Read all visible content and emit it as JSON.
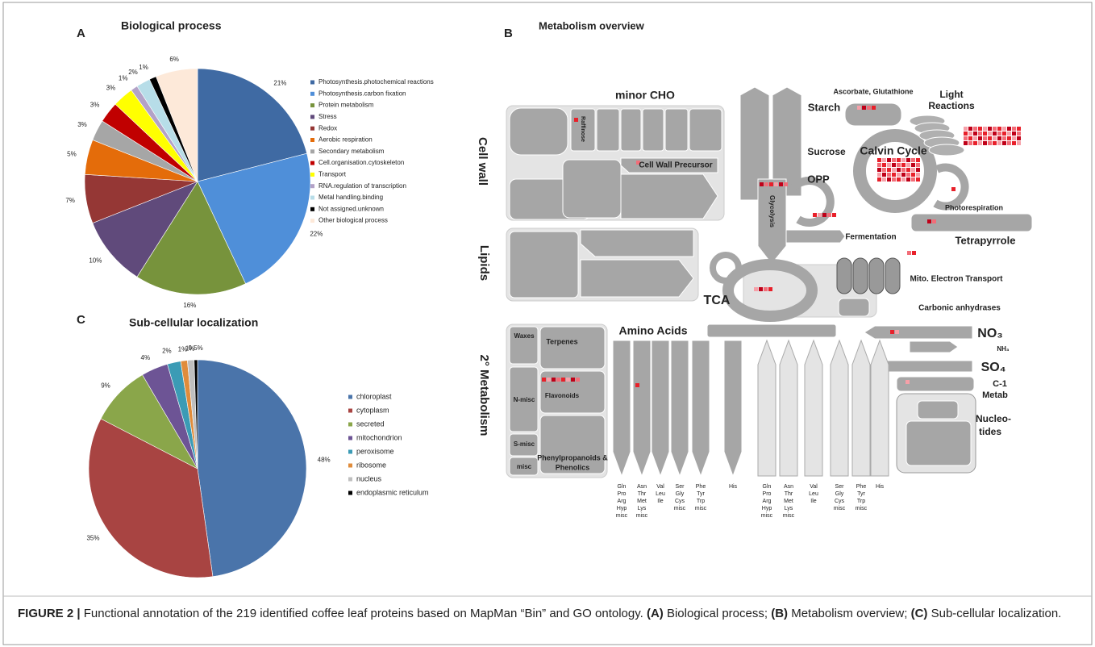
{
  "chart_data": [
    {
      "type": "pie",
      "panel": "A",
      "title": "Biological process",
      "categories": [
        "Photosynthesis.photochemical reactions",
        "Photosynthesis.carbon fixation",
        "Protein metabolism",
        "Stress",
        "Redox",
        "Aerobic respiration",
        "Secondary metabolism",
        "Cell.organisation.cytoskeleton",
        "Transport",
        "RNA.regulation of transcription",
        "Metal handling.binding",
        "Not assigned.unknown",
        "Other biological process"
      ],
      "values": [
        21,
        22,
        16,
        10,
        7,
        5,
        3,
        3,
        3,
        1,
        2,
        1,
        6
      ],
      "value_labels": [
        "21%",
        "22%",
        "16%",
        "10%",
        "7%",
        "5%",
        "3%",
        "3%",
        "3%",
        "1%",
        "2%",
        "1%",
        "6%"
      ],
      "colors": [
        "#3f6aa3",
        "#4f8fd9",
        "#77933c",
        "#604a7b",
        "#953735",
        "#e46c0a",
        "#a6a6a6",
        "#c00000",
        "#ffff00",
        "#b3a2c7",
        "#b7dde8",
        "#000000",
        "#fde9d9"
      ]
    },
    {
      "type": "pie",
      "panel": "C",
      "title": "Sub-cellular localization",
      "categories": [
        "chloroplast",
        "cytoplasm",
        "secreted",
        "mitochondrion",
        "peroxisome",
        "ribosome",
        "nucleus",
        "endoplasmic reticulum"
      ],
      "values": [
        48,
        35,
        9,
        4,
        2,
        1,
        1,
        0.5
      ],
      "value_labels": [
        "48%",
        "35%",
        "9%",
        "4%",
        "2%",
        "1%",
        "1%",
        "0,5%"
      ],
      "colors": [
        "#4a74aa",
        "#a84442",
        "#8aa64a",
        "#6d5495",
        "#3b9bb5",
        "#e08c3b",
        "#bfbfbf",
        "#000000"
      ]
    }
  ],
  "diagram": {
    "panel": "B",
    "title": "Metabolism overview",
    "labels": [
      "minor CHO",
      "Cell wall",
      "Raffinose",
      "Cell Wall Precursor",
      "Lipids",
      "Starch",
      "Sucrose",
      "Ascorbate, Glutathione",
      "Light",
      "Reactions",
      "Calvin Cycle",
      "OPP",
      "Glycolysis",
      "Fermentation",
      "Photorespiration",
      "Tetrapyrrole",
      "Mito. Electron Transport",
      "TCA",
      "Carbonic anhydrases",
      "Amino Acids",
      "NO₃",
      "NH₃",
      "SO₄",
      "C-1",
      "Metab",
      "Nucleo-",
      "tides",
      "2° Metabolism",
      "Waxes",
      "Terpenes",
      "Flavonoids",
      "N-misc",
      "S-misc",
      "misc",
      "Phenylpropanoids &",
      "Phenolics"
    ],
    "amino_groups_left": [
      [
        "Gln",
        "Pro",
        "Arg",
        "Hyp",
        "misc"
      ],
      [
        "Asn",
        "Thr",
        "Met",
        "Lys",
        "misc"
      ],
      [
        "Val",
        "Leu",
        "Ile"
      ],
      [
        "Ser",
        "Gly",
        "Cys",
        "misc"
      ],
      [
        "Phe",
        "Tyr",
        "Trp",
        "misc"
      ],
      [
        "His"
      ]
    ],
    "amino_groups_right": [
      [
        "Gln",
        "Pro",
        "Arg",
        "Hyp",
        "misc"
      ],
      [
        "Asn",
        "Thr",
        "Met",
        "Lys",
        "misc"
      ],
      [
        "Val",
        "Leu",
        "Ile"
      ],
      [
        "Ser",
        "Gly",
        "Cys",
        "misc"
      ],
      [
        "Phe",
        "Tyr",
        "Trp",
        "misc"
      ],
      [
        "His"
      ]
    ]
  },
  "caption": {
    "label": "FIGURE 2 |",
    "text": "Functional annotation of the 219 identified coffee leaf proteins based on MapMan “Bin” and GO ontology.",
    "parts": [
      {
        "key": "(A)",
        "text": "Biological process;"
      },
      {
        "key": "(B)",
        "text": "Metabolism overview;"
      },
      {
        "key": "(C)",
        "text": "Sub-cellular localization."
      }
    ]
  }
}
